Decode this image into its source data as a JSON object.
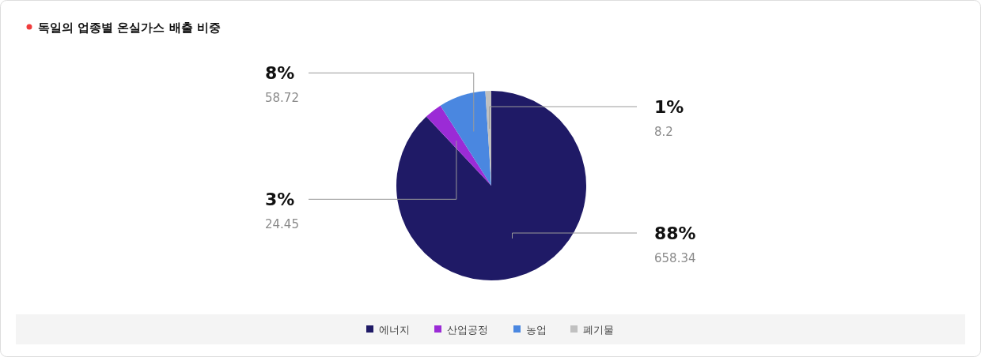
{
  "chart_data": {
    "type": "pie",
    "title": "독일의 업종별 온실가스 배출 비중",
    "categories": [
      "에너지",
      "산업공정",
      "농업",
      "폐기물"
    ],
    "values": [
      88,
      3,
      8,
      1
    ],
    "value_labels": [
      "88%",
      "3%",
      "8%",
      "1%"
    ],
    "annotations": [
      "658.34",
      "24.45",
      "58.72",
      "8.2"
    ],
    "colors": [
      "#1f1a66",
      "#9b2bd6",
      "#4a87e0",
      "#c0c0c0"
    ],
    "legend": "bottom"
  }
}
